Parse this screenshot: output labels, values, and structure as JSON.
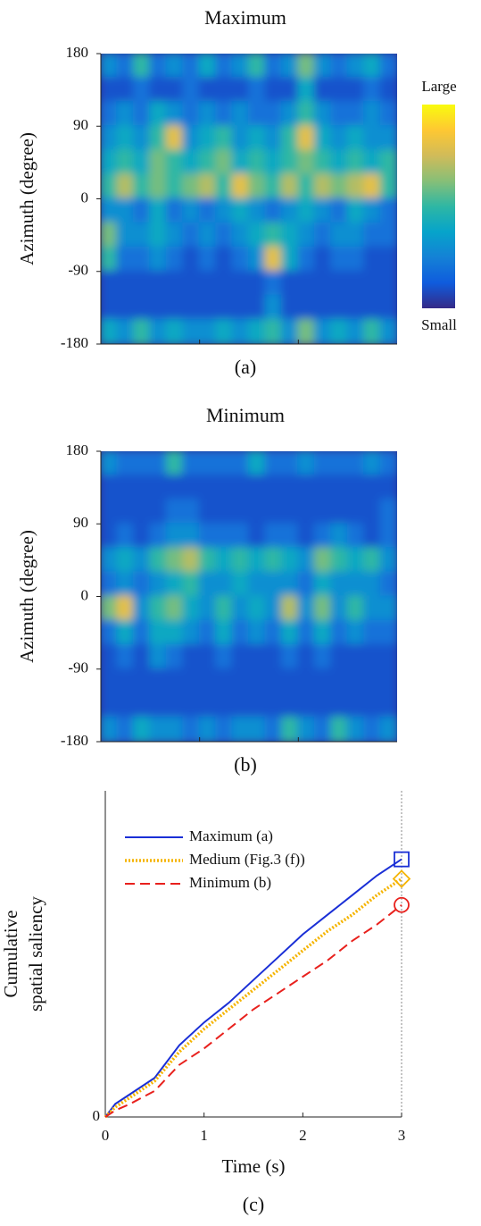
{
  "chart_data": [
    {
      "type": "heatmap",
      "title": "Maximum",
      "ylabel": "Azimuth (degree)",
      "caption": "(a)",
      "ylim": [
        -180,
        180
      ],
      "yticks": [
        180,
        90,
        0,
        -90,
        -180
      ],
      "colormap": [
        "#352a87",
        "#0f5cdd",
        "#1481d6",
        "#06a4ca",
        "#2eb7a4",
        "#87bf77",
        "#d1bb59",
        "#fec832",
        "#f9fb0e"
      ],
      "colorbar_labels": [
        "Large",
        "Small"
      ],
      "values": [
        [
          0.3,
          0.2,
          0.5,
          0.2,
          0.3,
          0.2,
          0.4,
          0.2,
          0.3,
          0.5,
          0.2,
          0.3,
          0.6,
          0.3,
          0.2,
          0.3,
          0.4,
          0.2
        ],
        [
          0.1,
          0.1,
          0.2,
          0.1,
          0.1,
          0.2,
          0.1,
          0.1,
          0.1,
          0.2,
          0.1,
          0.1,
          0.4,
          0.1,
          0.1,
          0.1,
          0.2,
          0.1
        ],
        [
          0.2,
          0.3,
          0.2,
          0.4,
          0.3,
          0.2,
          0.3,
          0.2,
          0.3,
          0.2,
          0.2,
          0.3,
          0.5,
          0.3,
          0.2,
          0.2,
          0.3,
          0.2
        ],
        [
          0.3,
          0.4,
          0.3,
          0.5,
          0.8,
          0.3,
          0.4,
          0.5,
          0.3,
          0.4,
          0.3,
          0.5,
          0.8,
          0.4,
          0.3,
          0.4,
          0.3,
          0.3
        ],
        [
          0.4,
          0.5,
          0.4,
          0.6,
          0.5,
          0.4,
          0.5,
          0.6,
          0.4,
          0.5,
          0.4,
          0.5,
          0.6,
          0.5,
          0.4,
          0.5,
          0.4,
          0.5
        ],
        [
          0.5,
          0.7,
          0.5,
          0.6,
          0.5,
          0.6,
          0.7,
          0.5,
          0.8,
          0.6,
          0.5,
          0.7,
          0.5,
          0.7,
          0.6,
          0.7,
          0.8,
          0.5
        ],
        [
          0.3,
          0.3,
          0.2,
          0.4,
          0.2,
          0.3,
          0.2,
          0.3,
          0.4,
          0.3,
          0.2,
          0.3,
          0.4,
          0.3,
          0.2,
          0.4,
          0.3,
          0.2
        ],
        [
          0.6,
          0.3,
          0.3,
          0.4,
          0.3,
          0.2,
          0.3,
          0.2,
          0.3,
          0.4,
          0.5,
          0.4,
          0.3,
          0.2,
          0.3,
          0.3,
          0.2,
          0.2
        ],
        [
          0.5,
          0.2,
          0.2,
          0.3,
          0.2,
          0.1,
          0.2,
          0.1,
          0.2,
          0.3,
          0.8,
          0.4,
          0.2,
          0.1,
          0.2,
          0.2,
          0.1,
          0.1
        ],
        [
          0.1,
          0.1,
          0.1,
          0.1,
          0.1,
          0.1,
          0.1,
          0.1,
          0.1,
          0.1,
          0.2,
          0.1,
          0.1,
          0.1,
          0.1,
          0.1,
          0.1,
          0.1
        ],
        [
          0.1,
          0.1,
          0.1,
          0.1,
          0.1,
          0.1,
          0.1,
          0.1,
          0.1,
          0.1,
          0.3,
          0.1,
          0.1,
          0.1,
          0.1,
          0.1,
          0.1,
          0.1
        ],
        [
          0.4,
          0.3,
          0.5,
          0.3,
          0.4,
          0.3,
          0.3,
          0.4,
          0.3,
          0.4,
          0.5,
          0.3,
          0.6,
          0.3,
          0.4,
          0.3,
          0.5,
          0.3
        ]
      ]
    },
    {
      "type": "heatmap",
      "title": "Minimum",
      "ylabel": "Azimuth (degree)",
      "caption": "(b)",
      "ylim": [
        -180,
        180
      ],
      "yticks": [
        180,
        90,
        0,
        -90,
        -180
      ],
      "colormap": [
        "#352a87",
        "#0f5cdd",
        "#1481d6",
        "#06a4ca",
        "#2eb7a4",
        "#87bf77",
        "#d1bb59",
        "#fec832",
        "#f9fb0e"
      ],
      "values": [
        [
          0.3,
          0.2,
          0.2,
          0.2,
          0.5,
          0.2,
          0.2,
          0.2,
          0.2,
          0.4,
          0.2,
          0.2,
          0.3,
          0.2,
          0.2,
          0.2,
          0.3,
          0.2
        ],
        [
          0.1,
          0.1,
          0.1,
          0.1,
          0.1,
          0.1,
          0.1,
          0.1,
          0.1,
          0.1,
          0.1,
          0.1,
          0.1,
          0.1,
          0.1,
          0.1,
          0.1,
          0.1
        ],
        [
          0.1,
          0.1,
          0.1,
          0.1,
          0.2,
          0.2,
          0.1,
          0.1,
          0.1,
          0.1,
          0.1,
          0.1,
          0.1,
          0.1,
          0.1,
          0.1,
          0.1,
          0.2
        ],
        [
          0.1,
          0.2,
          0.1,
          0.2,
          0.3,
          0.3,
          0.2,
          0.2,
          0.2,
          0.1,
          0.2,
          0.2,
          0.1,
          0.2,
          0.3,
          0.2,
          0.1,
          0.2
        ],
        [
          0.3,
          0.4,
          0.3,
          0.5,
          0.6,
          0.7,
          0.5,
          0.4,
          0.5,
          0.4,
          0.5,
          0.4,
          0.3,
          0.6,
          0.5,
          0.4,
          0.5,
          0.3
        ],
        [
          0.2,
          0.3,
          0.2,
          0.3,
          0.4,
          0.5,
          0.3,
          0.3,
          0.4,
          0.3,
          0.3,
          0.3,
          0.2,
          0.4,
          0.3,
          0.3,
          0.3,
          0.2
        ],
        [
          0.6,
          0.8,
          0.3,
          0.5,
          0.6,
          0.4,
          0.3,
          0.5,
          0.3,
          0.4,
          0.3,
          0.7,
          0.3,
          0.6,
          0.3,
          0.5,
          0.3,
          0.3
        ],
        [
          0.2,
          0.4,
          0.2,
          0.4,
          0.4,
          0.3,
          0.2,
          0.4,
          0.2,
          0.3,
          0.2,
          0.4,
          0.2,
          0.4,
          0.2,
          0.3,
          0.2,
          0.2
        ],
        [
          0.1,
          0.2,
          0.1,
          0.3,
          0.2,
          0.1,
          0.1,
          0.2,
          0.1,
          0.1,
          0.1,
          0.2,
          0.1,
          0.2,
          0.1,
          0.1,
          0.1,
          0.1
        ],
        [
          0.1,
          0.1,
          0.1,
          0.1,
          0.1,
          0.1,
          0.1,
          0.1,
          0.1,
          0.1,
          0.1,
          0.1,
          0.1,
          0.1,
          0.1,
          0.1,
          0.1,
          0.1
        ],
        [
          0.1,
          0.1,
          0.1,
          0.1,
          0.1,
          0.1,
          0.1,
          0.1,
          0.1,
          0.1,
          0.1,
          0.1,
          0.1,
          0.1,
          0.1,
          0.1,
          0.1,
          0.1
        ],
        [
          0.3,
          0.2,
          0.4,
          0.3,
          0.3,
          0.2,
          0.3,
          0.2,
          0.3,
          0.3,
          0.2,
          0.5,
          0.3,
          0.2,
          0.5,
          0.3,
          0.2,
          0.3
        ]
      ]
    },
    {
      "type": "line",
      "ylabel": [
        "Cumulative",
        "spatial saliency"
      ],
      "xlabel": "Time (s)",
      "caption": "(c)",
      "x": [
        0,
        0.1,
        0.25,
        0.5,
        0.75,
        1,
        1.25,
        1.5,
        1.75,
        2,
        2.25,
        2.5,
        2.75,
        3
      ],
      "xlim": [
        0,
        3
      ],
      "xticks": [
        0,
        1,
        2,
        3
      ],
      "ylim": [
        0,
        1
      ],
      "yticks": [
        0
      ],
      "vline": 3,
      "series": [
        {
          "name": "Maximum (a)",
          "color": "#1a2fd6",
          "dash": "solid",
          "marker": "square",
          "values": [
            0,
            0.04,
            0.07,
            0.12,
            0.22,
            0.29,
            0.35,
            0.42,
            0.49,
            0.56,
            0.62,
            0.68,
            0.74,
            0.79
          ]
        },
        {
          "name": "Medium (Fig.3 (f))",
          "color": "#f5b400",
          "dash": "dotted",
          "marker": "diamond",
          "values": [
            0,
            0.03,
            0.06,
            0.11,
            0.2,
            0.27,
            0.33,
            0.39,
            0.45,
            0.51,
            0.57,
            0.62,
            0.68,
            0.73
          ]
        },
        {
          "name": "Minimum (b)",
          "color": "#e8211d",
          "dash": "dashed",
          "marker": "circle",
          "values": [
            0,
            0.02,
            0.04,
            0.08,
            0.16,
            0.21,
            0.27,
            0.33,
            0.38,
            0.43,
            0.48,
            0.54,
            0.59,
            0.65
          ]
        }
      ]
    }
  ]
}
